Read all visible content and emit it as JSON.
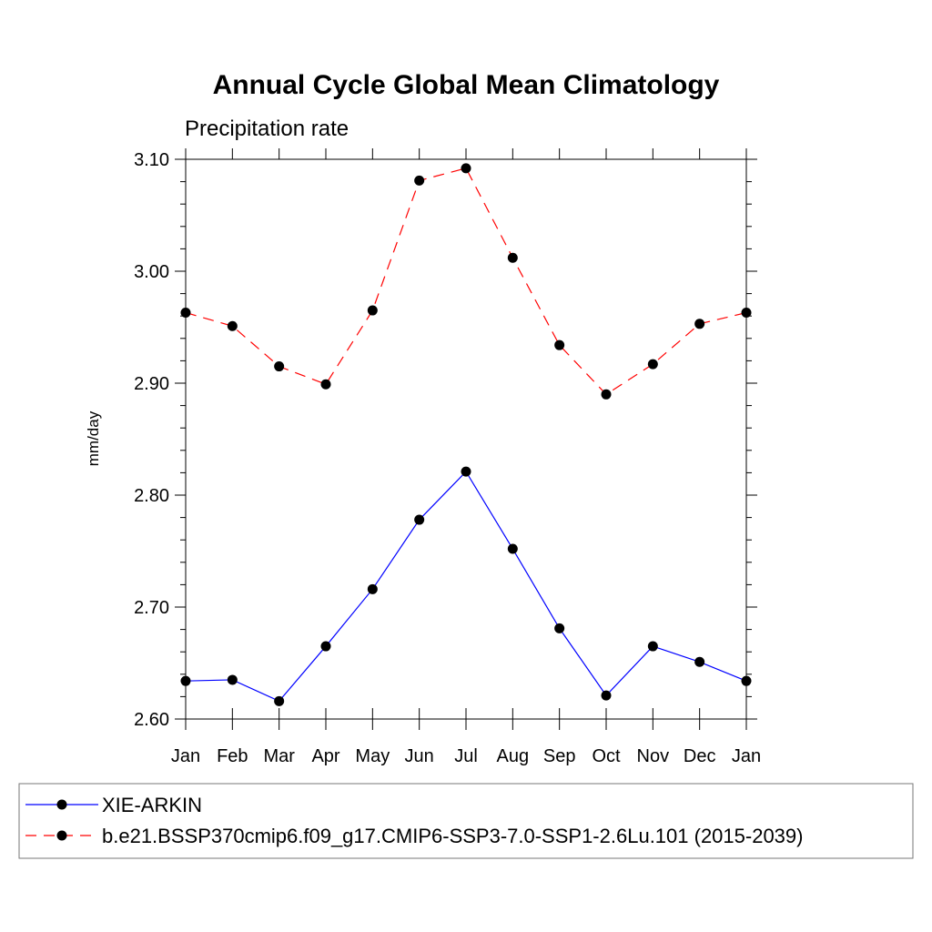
{
  "chart_data": {
    "type": "line",
    "title": "Annual Cycle Global Mean Climatology",
    "subtitle": "Precipitation rate",
    "ylabel": "mm/day",
    "xlabel": "",
    "ylim": [
      2.6,
      3.1
    ],
    "yticks": [
      "2.60",
      "2.70",
      "2.80",
      "2.90",
      "3.00",
      "3.10"
    ],
    "categories": [
      "Jan",
      "Feb",
      "Mar",
      "Apr",
      "May",
      "Jun",
      "Jul",
      "Aug",
      "Sep",
      "Oct",
      "Nov",
      "Dec",
      "Jan"
    ],
    "series": [
      {
        "name": "XIE-ARKIN",
        "color": "#0000ff",
        "dash": "solid",
        "values": [
          2.634,
          2.635,
          2.616,
          2.665,
          2.716,
          2.778,
          2.821,
          2.752,
          2.681,
          2.621,
          2.665,
          2.651,
          2.634
        ]
      },
      {
        "name": "b.e21.BSSP370cmip6.f09_g17.CMIP6-SSP3-7.0-SSP1-2.6Lu.101 (2015-2039)",
        "color": "#ff0000",
        "dash": "dashed",
        "values": [
          2.963,
          2.951,
          2.915,
          2.899,
          2.965,
          3.081,
          3.092,
          3.012,
          2.934,
          2.89,
          2.917,
          2.953,
          2.963
        ]
      }
    ],
    "grid": false,
    "legend_position": "bottom"
  }
}
